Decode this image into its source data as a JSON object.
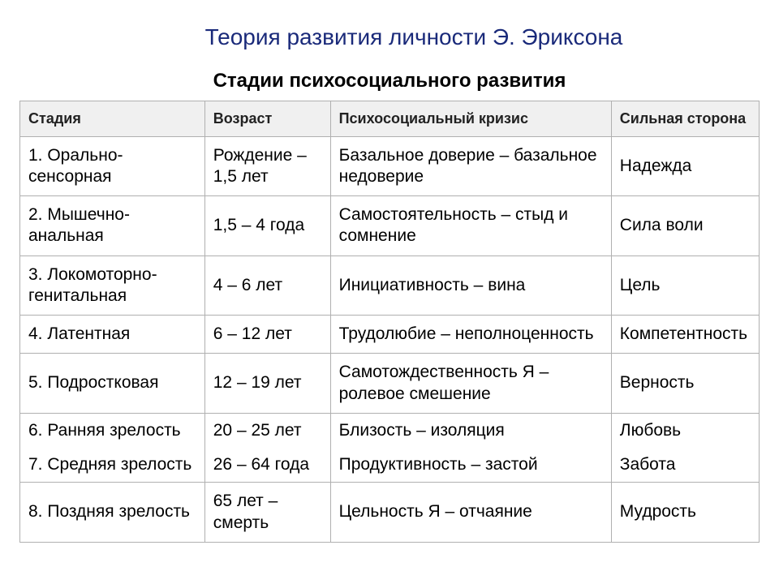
{
  "title": "Теория развития личности Э. Эриксона",
  "subtitle": "Стадии психосоциального развития",
  "table": {
    "columns": [
      "Стадия",
      "Возраст",
      "Психосоциальный кризис",
      "Сильная сторона"
    ],
    "column_widths_pct": [
      25,
      17,
      38,
      20
    ],
    "header_bg": "#f0f0f0",
    "border_color": "#b0b0b0",
    "title_color": "#1a2a7a",
    "text_color": "#000000",
    "font_size_body": 21,
    "font_size_header": 18,
    "rows": [
      {
        "cells": [
          "1. Орально-сенсорная",
          "Рождение – 1,5 лет",
          "Базальное доверие – базальное недоверие",
          "Надежда"
        ]
      },
      {
        "cells": [
          "2. Мышечно-анальная",
          "1,5  – 4 года",
          "Самостоятельность – стыд и сомнение",
          "Сила воли"
        ]
      },
      {
        "cells": [
          "3. Локомоторно-генитальная",
          "4 – 6 лет",
          "Инициативность – вина",
          "Цель"
        ]
      },
      {
        "cells": [
          "4. Латентная",
          "6 – 12 лет",
          "Трудолюбие – неполноценность",
          "Компетентность"
        ]
      },
      {
        "cells": [
          "5. Подростковая",
          "12 – 19 лет",
          "Самотождественность Я – ролевое смешение",
          "Верность"
        ]
      },
      {
        "combined": true,
        "cells_a": [
          "6. Ранняя зрелость",
          "20 – 25 лет",
          "Близость – изоляция",
          "Любовь"
        ],
        "cells_b": [
          "7. Средняя зрелость",
          "26 – 64 года",
          "Продуктивность – застой",
          "Забота"
        ]
      },
      {
        "cells": [
          "8. Поздняя зрелость",
          "65 лет – смерть",
          "Цельность Я – отчаяние",
          "Мудрость"
        ]
      }
    ]
  }
}
